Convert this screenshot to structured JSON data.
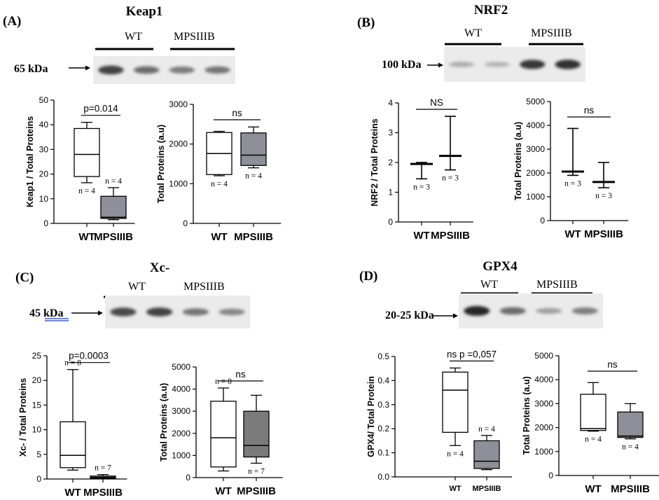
{
  "figure": {
    "panels": [
      {
        "letter": "(A)",
        "blot": {
          "title": "Keap1",
          "groups": [
            "WT",
            "MPSIIIB"
          ],
          "kda": "65 kDa",
          "bands": [
            0.85,
            0.6,
            0.5,
            0.55
          ]
        },
        "charts": [
          {
            "type": "boxplot",
            "ylabel": "Keap1 / Total Proteins",
            "ylim": [
              0,
              50
            ],
            "yticks": [
              "0",
              "10",
              "20",
              "30",
              "40",
              "50"
            ],
            "categories": [
              "WT",
              "MPSIIIB"
            ],
            "boxes": [
              {
                "min": 16.5,
                "q1": 19,
                "median": 28,
                "q3": 38.5,
                "max": 41,
                "fill": "#ffffff",
                "n": "n = 4"
              },
              {
                "min": 1.5,
                "q1": 2,
                "median": 2.5,
                "q3": 11,
                "max": 14.5,
                "fill": "#8f8f99",
                "n": "n = 4"
              }
            ],
            "sig": "p=0.014"
          },
          {
            "type": "boxplot",
            "ylabel": "Total Proteins (a.u)",
            "ylim": [
              0,
              3000
            ],
            "yticks": [
              "0",
              "1000",
              "2000",
              "3000"
            ],
            "categories": [
              "WT",
              "MPSIIIB"
            ],
            "boxes": [
              {
                "min": 1200,
                "q1": 1230,
                "median": 1760,
                "q3": 2290,
                "max": 2320,
                "fill": "#ffffff",
                "n": "n = 4"
              },
              {
                "min": 1400,
                "q1": 1460,
                "median": 1720,
                "q3": 2280,
                "max": 2430,
                "fill": "#8f8f99",
                "n": "n = 4"
              }
            ],
            "sig": "ns"
          }
        ]
      },
      {
        "letter": "(B)",
        "blot": {
          "title": "NRF2",
          "groups": [
            "WT",
            "MPSIIIB"
          ],
          "kda": "100 kDa",
          "bands": [
            0.22,
            0.18,
            0.9,
            0.95
          ]
        },
        "charts": [
          {
            "type": "minmax",
            "ylabel": "NRF2 / Total Proteins",
            "ylim": [
              0,
              4
            ],
            "yticks": [
              "0",
              "1",
              "2",
              "3",
              "4"
            ],
            "categories": [
              "WT",
              "MPSIIIB"
            ],
            "items": [
              {
                "min": 1.45,
                "median": 1.95,
                "max": 2.0,
                "n": "n = 3"
              },
              {
                "min": 1.75,
                "median": 2.22,
                "max": 3.55,
                "n": "n = 3"
              }
            ],
            "sig": "NS"
          },
          {
            "type": "minmax",
            "ylabel": "Total Proteins (a.u)",
            "ylim": [
              0,
              5000
            ],
            "yticks": [
              "0",
              "1000",
              "2000",
              "3000",
              "4000",
              "5000"
            ],
            "categories": [
              "WT",
              "MPSIIIB"
            ],
            "items": [
              {
                "min": 1900,
                "median": 2060,
                "max": 3870,
                "n": "n = 3"
              },
              {
                "min": 1380,
                "median": 1620,
                "max": 2440,
                "n": "n = 3"
              }
            ],
            "sig": "ns"
          }
        ]
      },
      {
        "letter": "(C)",
        "blot": {
          "title": "Xc-",
          "groups": [
            "WT",
            "MPSIIIB"
          ],
          "kda": "45 kDa",
          "bands": [
            0.8,
            0.85,
            0.55,
            0.45
          ]
        },
        "charts": [
          {
            "type": "boxplot",
            "ylabel": "Xc- / Total Proteins",
            "ylim": [
              0,
              25
            ],
            "yticks": [
              "0",
              "5",
              "10",
              "15",
              "20",
              "25"
            ],
            "categories": [
              "WT",
              "MPSIIIB"
            ],
            "boxes": [
              {
                "min": 1.8,
                "q1": 2.3,
                "median": 4.8,
                "q3": 11.6,
                "max": 22.2,
                "fill": "#ffffff",
                "n": "n = 8"
              },
              {
                "min": 0.1,
                "q1": 0.15,
                "median": 0.3,
                "q3": 0.6,
                "max": 0.9,
                "fill": "#7a7a7a",
                "n": "n = 7"
              }
            ],
            "sig": "p=0.0003"
          },
          {
            "type": "boxplot",
            "ylabel": "Total Proteins (a.u)",
            "ylim": [
              0,
              5000
            ],
            "yticks": [
              "0",
              "1000",
              "2000",
              "3000",
              "4000",
              "5000"
            ],
            "categories": [
              "WT",
              "MPSIIIB"
            ],
            "boxes": [
              {
                "min": 300,
                "q1": 480,
                "median": 1800,
                "q3": 3450,
                "max": 4050,
                "fill": "#ffffff",
                "n": "n = 8"
              },
              {
                "min": 650,
                "q1": 930,
                "median": 1450,
                "q3": 3000,
                "max": 3720,
                "fill": "#7a7a7a",
                "n": "n = 7"
              }
            ],
            "sig": "ns"
          }
        ]
      },
      {
        "letter": "(D)",
        "blot": {
          "title": "GPX4",
          "groups": [
            "WT",
            "MPSIIIB"
          ],
          "kda": "20-25 kDa",
          "bands": [
            1.0,
            0.6,
            0.3,
            0.5
          ]
        },
        "charts": [
          {
            "type": "boxplot",
            "ylabel": "GPX4/ Total Protein",
            "ylim": [
              0,
              0.5
            ],
            "yticks": [
              "0.0",
              "0.1",
              "0.2",
              "0.3",
              "0.4",
              "0.5"
            ],
            "categories": [
              "WT",
              "MPSIIIB"
            ],
            "boxes": [
              {
                "min": 0.13,
                "q1": 0.185,
                "median": 0.36,
                "q3": 0.435,
                "max": 0.452,
                "fill": "#ffffff",
                "n": "n = 4"
              },
              {
                "min": 0.03,
                "q1": 0.035,
                "median": 0.065,
                "q3": 0.15,
                "max": 0.172,
                "fill": "#8f8f99",
                "n": "n = 4"
              }
            ],
            "sig": "ns p =0,057"
          },
          {
            "type": "boxplot",
            "ylabel": "Total Proteins (a.u)",
            "ylim": [
              0,
              5000
            ],
            "yticks": [
              "0",
              "1000",
              "2000",
              "3000",
              "4000",
              "5000"
            ],
            "categories": [
              "WT",
              "MPSIIIB"
            ],
            "boxes": [
              {
                "min": 1850,
                "q1": 1880,
                "median": 1960,
                "q3": 3390,
                "max": 3880,
                "fill": "#ffffff",
                "n": "n = 4"
              },
              {
                "min": 1530,
                "q1": 1590,
                "median": 1650,
                "q3": 2650,
                "max": 3000,
                "fill": "#8f8f99",
                "n": "n = 4"
              }
            ],
            "sig": "ns"
          }
        ]
      }
    ]
  },
  "chart_data": [
    {
      "type": "boxplot",
      "panel": "(A)",
      "ylabel": "Keap1 / Total Proteins",
      "categories": [
        "WT",
        "MPSIIIB"
      ],
      "ylim": [
        0,
        50
      ],
      "series": [
        {
          "values": [
            {
              "min": 16.5,
              "q1": 19,
              "median": 28,
              "q3": 38.5,
              "max": 41
            },
            {
              "min": 1.5,
              "q1": 2,
              "median": 2.5,
              "q3": 11,
              "max": 14.5
            }
          ]
        }
      ],
      "annotation": "p=0.014"
    },
    {
      "type": "boxplot",
      "panel": "(A)",
      "ylabel": "Total Proteins (a.u)",
      "categories": [
        "WT",
        "MPSIIIB"
      ],
      "ylim": [
        0,
        3000
      ],
      "series": [
        {
          "values": [
            {
              "min": 1200,
              "q1": 1230,
              "median": 1760,
              "q3": 2290,
              "max": 2320
            },
            {
              "min": 1400,
              "q1": 1460,
              "median": 1720,
              "q3": 2280,
              "max": 2430
            }
          ]
        }
      ],
      "annotation": "ns"
    },
    {
      "type": "boxplot",
      "panel": "(B)",
      "ylabel": "NRF2 / Total Proteins",
      "categories": [
        "WT",
        "MPSIIIB"
      ],
      "ylim": [
        0,
        4
      ],
      "series": [
        {
          "values": [
            {
              "min": 1.45,
              "median": 1.95,
              "max": 2.0
            },
            {
              "min": 1.75,
              "median": 2.22,
              "max": 3.55
            }
          ]
        }
      ],
      "annotation": "NS"
    },
    {
      "type": "boxplot",
      "panel": "(B)",
      "ylabel": "Total Proteins (a.u)",
      "categories": [
        "WT",
        "MPSIIIB"
      ],
      "ylim": [
        0,
        5000
      ],
      "series": [
        {
          "values": [
            {
              "min": 1900,
              "median": 2060,
              "max": 3870
            },
            {
              "min": 1380,
              "median": 1620,
              "max": 2440
            }
          ]
        }
      ],
      "annotation": "ns"
    },
    {
      "type": "boxplot",
      "panel": "(C)",
      "ylabel": "Xc- / Total Proteins",
      "categories": [
        "WT",
        "MPSIIIB"
      ],
      "ylim": [
        0,
        25
      ],
      "series": [
        {
          "values": [
            {
              "min": 1.8,
              "q1": 2.3,
              "median": 4.8,
              "q3": 11.6,
              "max": 22.2
            },
            {
              "min": 0.1,
              "q1": 0.15,
              "median": 0.3,
              "q3": 0.6,
              "max": 0.9
            }
          ]
        }
      ],
      "annotation": "p=0.0003"
    },
    {
      "type": "boxplot",
      "panel": "(C)",
      "ylabel": "Total Proteins (a.u)",
      "categories": [
        "WT",
        "MPSIIIB"
      ],
      "ylim": [
        0,
        5000
      ],
      "series": [
        {
          "values": [
            {
              "min": 300,
              "q1": 480,
              "median": 1800,
              "q3": 3450,
              "max": 4050
            },
            {
              "min": 650,
              "q1": 930,
              "median": 1450,
              "q3": 3000,
              "max": 3720
            }
          ]
        }
      ],
      "annotation": "ns"
    },
    {
      "type": "boxplot",
      "panel": "(D)",
      "ylabel": "GPX4/ Total Protein",
      "categories": [
        "WT",
        "MPSIIIB"
      ],
      "ylim": [
        0,
        0.5
      ],
      "series": [
        {
          "values": [
            {
              "min": 0.13,
              "q1": 0.185,
              "median": 0.36,
              "q3": 0.435,
              "max": 0.452
            },
            {
              "min": 0.03,
              "q1": 0.035,
              "median": 0.065,
              "q3": 0.15,
              "max": 0.172
            }
          ]
        }
      ],
      "annotation": "ns p =0,057"
    },
    {
      "type": "boxplot",
      "panel": "(D)",
      "ylabel": "Total Proteins (a.u)",
      "categories": [
        "WT",
        "MPSIIIB"
      ],
      "ylim": [
        0,
        5000
      ],
      "series": [
        {
          "values": [
            {
              "min": 1850,
              "q1": 1880,
              "median": 1960,
              "q3": 3390,
              "max": 3880
            },
            {
              "min": 1530,
              "q1": 1590,
              "median": 1650,
              "q3": 2650,
              "max": 3000
            }
          ]
        }
      ],
      "annotation": "ns"
    }
  ]
}
